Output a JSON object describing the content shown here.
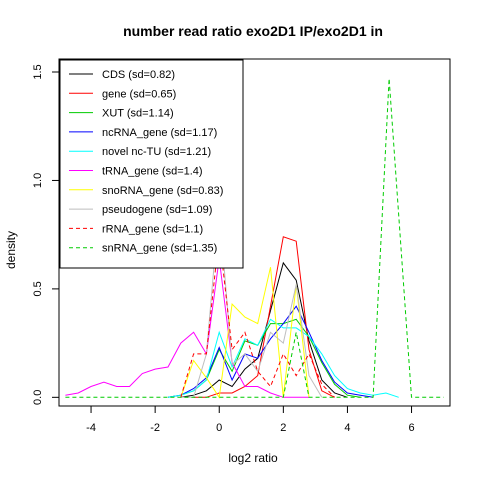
{
  "chart_data": {
    "type": "line",
    "title": "number read ratio exo2D1 IP/exo2D1 in",
    "xlabel": "log2 ratio",
    "ylabel": "density",
    "xlim": [
      -5.0,
      7.2
    ],
    "ylim": [
      -0.04,
      1.56
    ],
    "xticks": [
      -4,
      -2,
      0,
      2,
      4,
      6
    ],
    "yticks": [
      0.0,
      0.5,
      1.0,
      1.5
    ],
    "ytick_labels": [
      "0.0",
      "0.5",
      "1.0",
      "1.5"
    ],
    "legend_position": "top-left",
    "series": [
      {
        "name": "CDS (sd=0.82)",
        "color": "#000000",
        "dash": "solid",
        "x": [
          -1.2,
          -0.8,
          -0.4,
          0.0,
          0.4,
          0.8,
          1.2,
          1.6,
          2.0,
          2.4,
          2.8,
          3.2,
          3.6,
          4.0
        ],
        "y": [
          0.0,
          0.01,
          0.03,
          0.08,
          0.05,
          0.13,
          0.18,
          0.4,
          0.62,
          0.54,
          0.26,
          0.08,
          0.02,
          0.0
        ]
      },
      {
        "name": "gene (sd=0.65)",
        "color": "#ff0000",
        "dash": "solid",
        "x": [
          -0.8,
          -0.4,
          0.0,
          0.4,
          0.8,
          1.2,
          1.6,
          2.0,
          2.4,
          2.8,
          3.2,
          3.6
        ],
        "y": [
          0.0,
          0.0,
          0.02,
          0.02,
          0.05,
          0.1,
          0.42,
          0.74,
          0.72,
          0.22,
          0.03,
          0.0
        ]
      },
      {
        "name": "XUT (sd=1.14)",
        "color": "#00cc00",
        "dash": "solid",
        "x": [
          -1.6,
          -1.2,
          -0.8,
          -0.4,
          0.0,
          0.4,
          0.8,
          1.2,
          1.6,
          2.0,
          2.4,
          2.8,
          3.2,
          3.6,
          4.0,
          4.4
        ],
        "y": [
          0.0,
          0.01,
          0.03,
          0.08,
          0.22,
          0.12,
          0.26,
          0.24,
          0.34,
          0.34,
          0.36,
          0.28,
          0.16,
          0.06,
          0.01,
          0.0
        ]
      },
      {
        "name": "ncRNA_gene (sd=1.17)",
        "color": "#0000ff",
        "dash": "solid",
        "x": [
          -1.6,
          -1.2,
          -0.8,
          -0.4,
          0.0,
          0.4,
          0.8,
          1.2,
          1.6,
          2.0,
          2.4,
          2.8,
          3.2,
          3.6,
          4.0,
          4.4,
          4.8
        ],
        "y": [
          0.0,
          0.01,
          0.04,
          0.09,
          0.23,
          0.08,
          0.2,
          0.18,
          0.27,
          0.34,
          0.42,
          0.3,
          0.17,
          0.07,
          0.02,
          0.01,
          0.0
        ]
      },
      {
        "name": "novel nc-TU (sd=1.21)",
        "color": "#00ffff",
        "dash": "solid",
        "x": [
          -1.6,
          -1.2,
          -0.8,
          -0.4,
          0.0,
          0.4,
          0.8,
          1.2,
          1.6,
          2.0,
          2.4,
          2.8,
          3.2,
          3.6,
          4.0,
          4.4,
          4.8,
          5.2,
          5.6
        ],
        "y": [
          0.0,
          0.01,
          0.03,
          0.08,
          0.3,
          0.14,
          0.27,
          0.24,
          0.36,
          0.32,
          0.32,
          0.28,
          0.2,
          0.1,
          0.04,
          0.02,
          0.01,
          0.02,
          0.0
        ]
      },
      {
        "name": "tRNA_gene (sd=1.4)",
        "color": "#ff00ff",
        "dash": "solid",
        "x": [
          -4.8,
          -4.4,
          -4.0,
          -3.6,
          -3.2,
          -2.8,
          -2.4,
          -2.0,
          -1.6,
          -1.2,
          -0.8,
          -0.4,
          0.0,
          0.4,
          0.8,
          1.2,
          1.6,
          2.0,
          2.4,
          2.8
        ],
        "y": [
          0.01,
          0.02,
          0.05,
          0.07,
          0.05,
          0.05,
          0.11,
          0.13,
          0.14,
          0.25,
          0.3,
          0.2,
          0.64,
          0.16,
          0.05,
          0.05,
          0.02,
          0.0,
          0.0,
          0.0
        ]
      },
      {
        "name": "snoRNA_gene (sd=0.83)",
        "color": "#ffff00",
        "dash": "solid",
        "x": [
          -1.2,
          -0.8,
          -0.4,
          0.0,
          0.4,
          0.8,
          1.2,
          1.6,
          2.0,
          2.4,
          2.8
        ],
        "y": [
          0.0,
          0.17,
          0.09,
          0.0,
          0.43,
          0.37,
          0.34,
          0.6,
          0.0,
          0.52,
          0.0
        ]
      },
      {
        "name": "pseudogene (sd=1.09)",
        "color": "#bebebe",
        "dash": "solid",
        "x": [
          -1.2,
          -0.8,
          -0.4,
          0.0,
          0.4,
          0.8,
          1.2,
          1.6,
          2.0,
          2.4,
          2.8,
          3.2
        ],
        "y": [
          0.0,
          0.0,
          0.2,
          0.88,
          0.15,
          0.2,
          0.12,
          0.3,
          0.25,
          0.52,
          0.1,
          0.0
        ]
      },
      {
        "name": "rRNA_gene (sd=1.1)",
        "color": "#ff0000",
        "dash": "dashed",
        "x": [
          -1.2,
          -0.8,
          -0.4,
          0.0,
          0.4,
          0.8,
          1.2,
          1.6,
          2.0,
          2.4,
          2.8,
          3.2,
          3.6
        ],
        "y": [
          0.0,
          0.2,
          0.2,
          0.75,
          0.22,
          0.3,
          0.12,
          0.05,
          0.2,
          0.1,
          0.2,
          0.06,
          0.0
        ]
      },
      {
        "name": "snRNA_gene (sd=1.35)",
        "color": "#00cc00",
        "dash": "dashed",
        "x": [
          -4.8,
          -1.2,
          -0.8,
          -0.4,
          0.0,
          0.4,
          0.8,
          2.0,
          2.4,
          2.8,
          4.8,
          5.3,
          6.0,
          7.0
        ],
        "y": [
          0.0,
          0.0,
          0.0,
          0.0,
          0.0,
          0.0,
          0.0,
          0.0,
          0.3,
          0.0,
          0.0,
          1.47,
          0.0,
          0.0
        ]
      }
    ]
  }
}
